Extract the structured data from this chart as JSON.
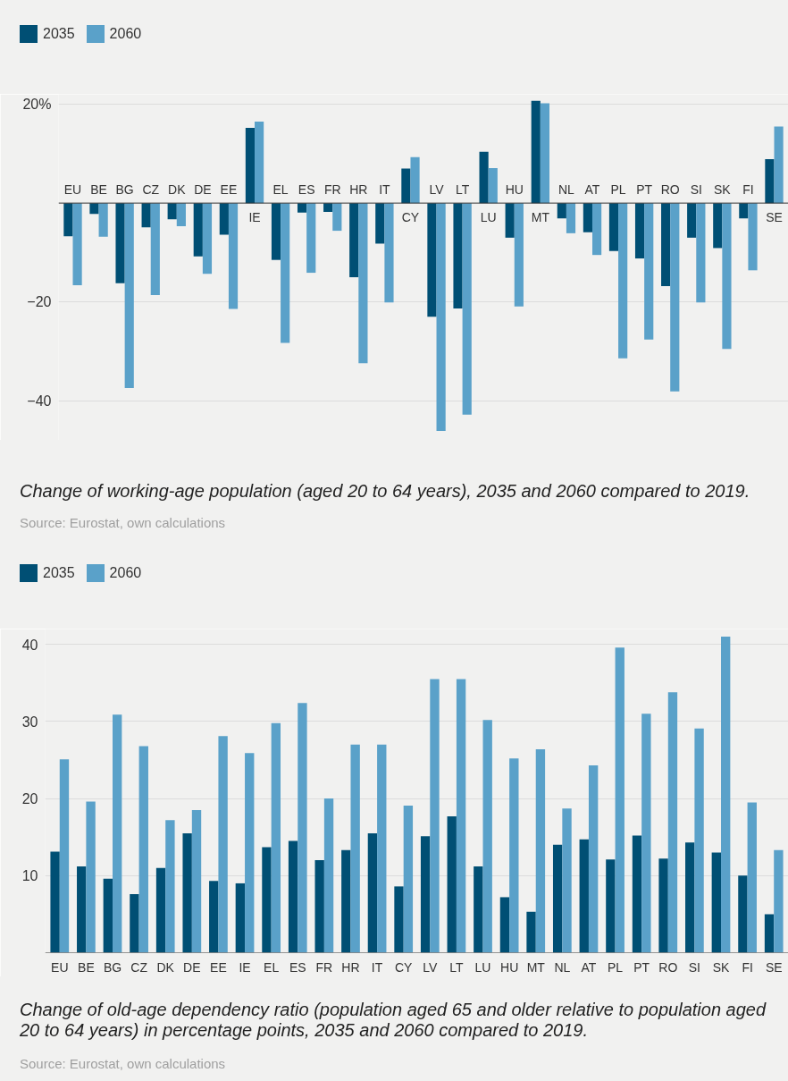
{
  "chart_data": [
    {
      "type": "bar",
      "title": "Change of working-age population (aged 20 to 64 years), 2035 and 2060 compared to 2019.",
      "annotations": [
        "Source: Eurostat, own calculations"
      ],
      "categories": [
        "EU",
        "BE",
        "BG",
        "CZ",
        "DK",
        "DE",
        "EE",
        "IE",
        "EL",
        "ES",
        "FR",
        "HR",
        "IT",
        "CY",
        "LV",
        "LT",
        "LU",
        "HU",
        "MT",
        "NL",
        "AT",
        "PL",
        "PT",
        "RO",
        "SI",
        "SK",
        "FI",
        "SE"
      ],
      "series": [
        {
          "name": "2035",
          "color": "#004f74",
          "values": [
            -6.7,
            -2.2,
            -16.2,
            -4.9,
            -3.3,
            -10.8,
            -6.4,
            15.2,
            -11.5,
            -1.9,
            -1.8,
            -15.0,
            -8.2,
            7.0,
            -23.0,
            -21.3,
            10.4,
            -7.0,
            20.7,
            -3.1,
            -5.9,
            -9.7,
            -11.2,
            -16.8,
            -7.0,
            -9.1,
            -3.1,
            8.9
          ]
        },
        {
          "name": "2060",
          "color": "#5aa1c9",
          "values": [
            -16.6,
            -6.8,
            -37.4,
            -18.6,
            -4.7,
            -14.3,
            -21.4,
            16.5,
            -28.3,
            -14.1,
            -5.6,
            -32.4,
            -20.1,
            9.3,
            -46.1,
            -42.8,
            7.1,
            -20.9,
            20.2,
            -6.1,
            -10.5,
            -31.4,
            -27.6,
            -38.1,
            -20.1,
            -29.5,
            -13.6,
            15.5
          ]
        }
      ],
      "ylim": [
        -48,
        22
      ],
      "yticks": [
        {
          "value": 20,
          "label": "20%"
        },
        {
          "value": -20,
          "label": "−20"
        },
        {
          "value": -40,
          "label": "−40"
        }
      ],
      "grid": "y",
      "legend": "top left"
    },
    {
      "type": "bar",
      "title": "Change of old-age dependency ratio (population aged 65 and older relative to population aged 20 to 64 years) in percentage points, 2035 and 2060 compared to 2019.",
      "annotations": [
        "Source: Eurostat, own calculations"
      ],
      "categories": [
        "EU",
        "BE",
        "BG",
        "CZ",
        "DK",
        "DE",
        "EE",
        "IE",
        "EL",
        "ES",
        "FR",
        "HR",
        "IT",
        "CY",
        "LV",
        "LT",
        "LU",
        "HU",
        "MT",
        "NL",
        "AT",
        "PL",
        "PT",
        "RO",
        "SI",
        "SK",
        "FI",
        "SE"
      ],
      "series": [
        {
          "name": "2035",
          "color": "#004f74",
          "values": [
            13.1,
            11.2,
            9.6,
            7.6,
            11.0,
            15.5,
            9.3,
            9.0,
            13.7,
            14.5,
            12.0,
            13.3,
            15.5,
            8.6,
            15.1,
            17.7,
            11.2,
            7.2,
            5.3,
            14.0,
            14.7,
            12.1,
            15.2,
            12.2,
            14.3,
            13.0,
            10.0,
            5.0
          ]
        },
        {
          "name": "2060",
          "color": "#5aa1c9",
          "values": [
            25.1,
            19.6,
            30.9,
            26.8,
            17.2,
            18.5,
            28.1,
            25.9,
            29.8,
            32.4,
            20.0,
            27.0,
            27.0,
            19.1,
            35.5,
            35.5,
            30.2,
            25.2,
            26.4,
            18.7,
            24.3,
            39.6,
            31.0,
            33.8,
            29.1,
            41.0,
            19.5,
            13.3
          ]
        }
      ],
      "ylim": [
        0,
        42
      ],
      "yticks": [
        10,
        20,
        30,
        40
      ],
      "grid": "y",
      "legend": "top left"
    }
  ]
}
